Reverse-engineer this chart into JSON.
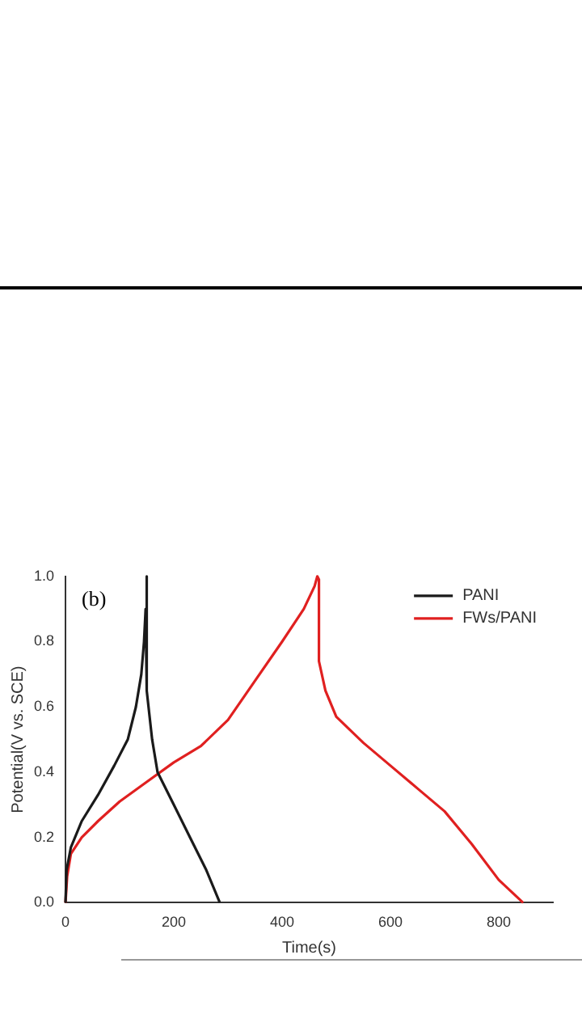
{
  "chart_data": {
    "type": "line",
    "xlabel": "Time(s)",
    "ylabel": "Potential(V vs. SCE)",
    "annotations": [
      "(b)"
    ],
    "xlim": [
      0,
      900
    ],
    "ylim": [
      0,
      1
    ],
    "xticks": [
      0,
      200,
      400,
      600,
      800
    ],
    "yticks": [
      {
        "value": 0,
        "label": "0.0"
      },
      0.2,
      0.4,
      0.6,
      0.8,
      {
        "value": 1,
        "label": "1.0"
      }
    ],
    "legend": "top right",
    "grid": false,
    "marker": "none",
    "line_style": "solid",
    "series": [
      {
        "name": "PANI",
        "color": "#1a1a1a",
        "x": [
          0,
          2,
          10,
          30,
          60,
          90,
          115,
          130,
          140,
          145,
          148,
          150,
          150,
          160,
          170,
          200,
          230,
          260,
          285
        ],
        "values": [
          0,
          0.1,
          0.17,
          0.25,
          0.33,
          0.42,
          0.5,
          0.6,
          0.7,
          0.8,
          0.9,
          1.0,
          0.65,
          0.5,
          0.4,
          0.3,
          0.2,
          0.1,
          0
        ]
      },
      {
        "name": "FWs/PANI",
        "color": "#e02020",
        "x": [
          0,
          3,
          10,
          30,
          60,
          100,
          150,
          200,
          250,
          300,
          350,
          400,
          440,
          460,
          465,
          468,
          468,
          480,
          500,
          550,
          600,
          650,
          700,
          750,
          800,
          845
        ],
        "values": [
          0,
          0.08,
          0.15,
          0.2,
          0.25,
          0.31,
          0.37,
          0.43,
          0.48,
          0.56,
          0.68,
          0.8,
          0.9,
          0.97,
          1.0,
          0.99,
          0.74,
          0.65,
          0.57,
          0.49,
          0.42,
          0.35,
          0.28,
          0.18,
          0.07,
          0
        ]
      }
    ]
  }
}
